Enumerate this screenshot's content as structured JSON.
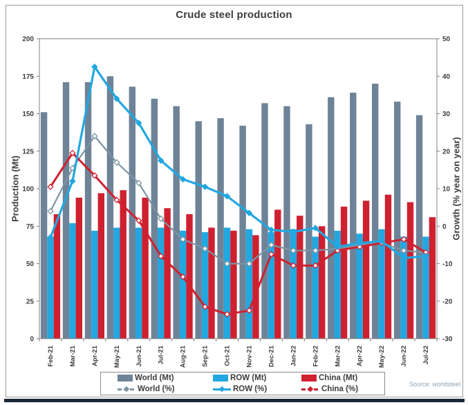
{
  "page": {
    "title": "Crude steel production",
    "source": "Source: worldsteel"
  },
  "chart_data": {
    "type": "bar",
    "subtype": "combo-bar-line",
    "title": "Crude steel production",
    "ylabel_left": "Production (Mt)",
    "ylabel_right": "Growth (% year on year)",
    "grid": false,
    "legend_position": "bottom",
    "categories": [
      "Feb-21",
      "Mar-21",
      "Apr-21",
      "May-21",
      "Jun-21",
      "Jul-21",
      "Aug-21",
      "Sep-21",
      "Oct-21",
      "Nov-21",
      "Dec-21",
      "Jan-22",
      "Feb-22",
      "Mar-22",
      "Apr-22",
      "May-22",
      "Jun-22",
      "Jul-22"
    ],
    "y_left": {
      "min": 0,
      "max": 200,
      "ticks": [
        0,
        25,
        50,
        75,
        100,
        125,
        150,
        175,
        200
      ]
    },
    "y_right": {
      "min": -30,
      "max": 50,
      "ticks": [
        -30,
        -20,
        -10,
        0,
        10,
        20,
        30,
        40,
        50
      ]
    },
    "bar_series": [
      {
        "name": "World (Mt)",
        "color": "#6e8397",
        "axis": "left",
        "values": [
          151,
          171,
          171,
          175,
          168,
          160,
          155,
          145,
          147,
          142,
          157,
          155,
          143,
          161,
          164,
          170,
          158,
          149
        ]
      },
      {
        "name": "ROW (Mt)",
        "color": "#22a7e0",
        "axis": "left",
        "values": [
          68,
          77,
          72,
          74,
          74,
          74,
          72,
          71,
          74,
          73,
          71,
          73,
          68,
          72,
          70,
          73,
          68,
          68
        ]
      },
      {
        "name": "China (Mt)",
        "color": "#cf2030",
        "axis": "left",
        "values": [
          83,
          94,
          97,
          99,
          94,
          87,
          83,
          74,
          72,
          69,
          86,
          82,
          75,
          88,
          92,
          96,
          91,
          81
        ]
      }
    ],
    "line_series": [
      {
        "name": "World (%)",
        "color": "#7c94a3",
        "axis": "right",
        "marker": "diamond-open",
        "values": [
          4,
          15.5,
          24,
          17,
          11.5,
          2,
          -3.5,
          -6,
          -10,
          -10,
          -5,
          -6.5,
          -6.5,
          -6,
          -5,
          -4.5,
          -6.5,
          -7
        ]
      },
      {
        "name": "China (%)",
        "color": "#cf2030",
        "axis": "right",
        "marker": "diamond-open",
        "values": [
          10.5,
          19.5,
          13.5,
          7,
          1.5,
          -8,
          -13.5,
          -21.5,
          -23.5,
          -22.5,
          -7.5,
          -10.5,
          -10.5,
          -6.5,
          -5.5,
          -4.5,
          -3.5,
          -7
        ]
      },
      {
        "name": "ROW (%)",
        "color": "#22a7e0",
        "axis": "right",
        "marker": "diamond-solid",
        "values": [
          -3,
          12,
          42.5,
          34,
          27.5,
          17.5,
          12.5,
          10.5,
          8,
          3.5,
          -1,
          -1.5,
          -0.5,
          -5.5,
          -4.5,
          -4,
          -8.5,
          -8
        ]
      }
    ]
  },
  "colors": {
    "world_bar": "#6e8397",
    "row_bar": "#22a7e0",
    "china_bar": "#cf2030",
    "world_line": "#7c94a3",
    "row_line": "#22a7e0",
    "china_line": "#cf2030",
    "axis": "#7f7f7f",
    "text": "#3d3d3d",
    "source_text": "#8ca3b4",
    "bottom_strip": "#1b2836"
  }
}
